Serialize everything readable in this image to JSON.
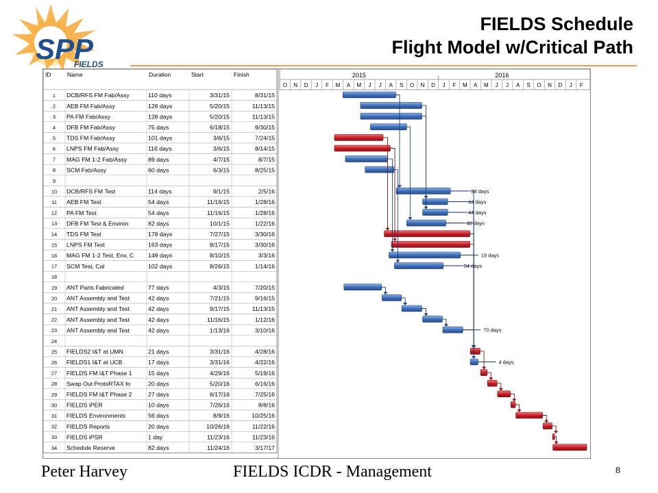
{
  "slide": {
    "title_line1": "FIELDS Schedule",
    "title_line2": "Flight Model w/Critical Path",
    "footer_left": "Peter Harvey",
    "footer_center": "FIELDS  ICDR - Management",
    "page_number": "8"
  },
  "logo": {
    "text_main": "SPP",
    "text_sub": "FIELDS",
    "icon": "sun-logo-icon"
  },
  "colors": {
    "normal_bar": "#3f6fb8",
    "critical_bar": "#c8202a",
    "link_blue": "#1f3f78",
    "link_red": "#8b1010",
    "title_rule": "#e0a060"
  },
  "columns": {
    "id": "ID",
    "name": "Name",
    "duration": "Duration",
    "start": "Start",
    "finish": "Finish"
  },
  "timeline": {
    "years": [
      "2015",
      "2016"
    ],
    "months": [
      "O",
      "N",
      "D",
      "J",
      "F",
      "M",
      "A",
      "M",
      "J",
      "J",
      "A",
      "S",
      "O",
      "N",
      "D",
      "J",
      "F",
      "M",
      "A",
      "M",
      "J",
      "J",
      "A",
      "S",
      "O",
      "N",
      "D",
      "J",
      "F"
    ]
  },
  "tasks": [
    {
      "id": "1",
      "name": "DCB/RFS FM Fab/Assy",
      "duration": "110 days",
      "start": "3/31/15",
      "finish": "8/31/15",
      "bar": [
        5.97,
        10.97
      ],
      "critical": false
    },
    {
      "id": "2",
      "name": "AEB FM Fab/Assy",
      "duration": "128 days",
      "start": "5/20/15",
      "finish": "11/13/15",
      "bar": [
        7.63,
        13.43
      ],
      "critical": false
    },
    {
      "id": "3",
      "name": "PA FM Fab/Assy",
      "duration": "128 days",
      "start": "5/20/15",
      "finish": "11/13/15",
      "bar": [
        7.63,
        13.43
      ],
      "critical": false
    },
    {
      "id": "4",
      "name": "DFB FM Fab/Assy",
      "duration": "75 days",
      "start": "6/18/15",
      "finish": "9/30/15",
      "bar": [
        8.57,
        12.0
      ],
      "critical": false
    },
    {
      "id": "5",
      "name": "TDS FM Fab/Assy",
      "duration": "101 days",
      "start": "3/6/15",
      "finish": "7/24/15",
      "bar": [
        5.17,
        9.77
      ],
      "critical": true
    },
    {
      "id": "6",
      "name": "LNPS FM Fab/Assy",
      "duration": "116 days",
      "start": "3/6/15",
      "finish": "8/14/15",
      "bar": [
        5.17,
        10.45
      ],
      "critical": true
    },
    {
      "id": "7",
      "name": "MAG FM 1-2 Fab/Assy",
      "duration": "89 days",
      "start": "4/7/15",
      "finish": "8/7/15",
      "bar": [
        6.2,
        10.2
      ],
      "critical": false
    },
    {
      "id": "8",
      "name": "SCM Fab/Assy",
      "duration": "60 days",
      "start": "6/3/15",
      "finish": "8/25/15",
      "bar": [
        8.07,
        10.8
      ],
      "critical": false
    },
    {
      "id": "9",
      "name": "",
      "duration": "",
      "start": "",
      "finish": "",
      "bar": null,
      "critical": false
    },
    {
      "id": "10",
      "name": "DCB/RFS FM Test",
      "duration": "114 days",
      "start": "9/1/15",
      "finish": "2/5/16",
      "bar": [
        11.0,
        16.13
      ],
      "critical": false,
      "slack": "38 days"
    },
    {
      "id": "11",
      "name": "AEB FM Test",
      "duration": "54 days",
      "start": "11/16/15",
      "finish": "1/28/16",
      "bar": [
        13.5,
        15.87
      ],
      "critical": false,
      "slack": "44 days"
    },
    {
      "id": "12",
      "name": "PA FM Test",
      "duration": "54 days",
      "start": "11/16/15",
      "finish": "1/28/16",
      "bar": [
        13.5,
        15.87
      ],
      "critical": false,
      "slack": "44 days"
    },
    {
      "id": "13",
      "name": "DFB FM Test & Environ",
      "duration": "82 days",
      "start": "10/1/15",
      "finish": "1/22/16",
      "bar": [
        12.0,
        15.7
      ],
      "critical": false,
      "slack": "48 days"
    },
    {
      "id": "14",
      "name": "TDS FM Test",
      "duration": "178 days",
      "start": "7/27/15",
      "finish": "3/30/16",
      "bar": [
        9.87,
        17.97
      ],
      "critical": true
    },
    {
      "id": "15",
      "name": "LNPS FM Test",
      "duration": "163 days",
      "start": "8/17/15",
      "finish": "3/30/16",
      "bar": [
        10.55,
        17.97
      ],
      "critical": true
    },
    {
      "id": "16",
      "name": "MAG FM 1-2 Test, Env, C",
      "duration": "149 days",
      "start": "8/10/15",
      "finish": "3/3/16",
      "bar": [
        10.32,
        17.07
      ],
      "critical": false,
      "slack": "19 days"
    },
    {
      "id": "17",
      "name": "SCM Test, Cal",
      "duration": "102 days",
      "start": "8/26/15",
      "finish": "1/14/16",
      "bar": [
        10.83,
        15.45
      ],
      "critical": false,
      "slack": "54 days"
    },
    {
      "id": "18",
      "name": "",
      "duration": "",
      "start": "",
      "finish": "",
      "bar": null,
      "critical": false
    },
    {
      "id": "19",
      "name": "ANT Parts Fabricated",
      "duration": "77 days",
      "start": "4/3/15",
      "finish": "7/20/15",
      "bar": [
        6.07,
        9.63
      ],
      "critical": false
    },
    {
      "id": "20",
      "name": "ANT Assembly and Test",
      "duration": "42 days",
      "start": "7/21/15",
      "finish": "9/16/15",
      "bar": [
        9.67,
        11.5
      ],
      "critical": false
    },
    {
      "id": "21",
      "name": "ANT Assembly and Test",
      "duration": "42 days",
      "start": "9/17/15",
      "finish": "11/13/15",
      "bar": [
        11.53,
        13.43
      ],
      "critical": false
    },
    {
      "id": "22",
      "name": "ANT Assembly and Test",
      "duration": "42 days",
      "start": "11/16/15",
      "finish": "1/12/16",
      "bar": [
        13.5,
        15.37
      ],
      "critical": false
    },
    {
      "id": "23",
      "name": "ANT Assembly and Test",
      "duration": "42 days",
      "start": "1/13/16",
      "finish": "3/10/16",
      "bar": [
        15.4,
        17.3
      ],
      "critical": false,
      "slack": "70 days"
    },
    {
      "id": "24",
      "name": "",
      "duration": "",
      "start": "",
      "finish": "",
      "bar": null,
      "critical": false
    },
    {
      "id": "25",
      "name": "FIELDS2 I&T at UMN",
      "duration": "21 days",
      "start": "3/31/16",
      "finish": "4/28/16",
      "bar": [
        18.0,
        18.93
      ],
      "critical": true
    },
    {
      "id": "26",
      "name": "FIELDS1 I&T at UCB",
      "duration": "17 days",
      "start": "3/31/16",
      "finish": "4/22/16",
      "bar": [
        18.0,
        18.73
      ],
      "critical": false,
      "slack": "4 days"
    },
    {
      "id": "27",
      "name": "FIELDS FM I&T Phase 1",
      "duration": "15 days",
      "start": "4/29/16",
      "finish": "5/19/16",
      "bar": [
        18.97,
        19.6
      ],
      "critical": true
    },
    {
      "id": "28",
      "name": "Swap Out ProtoRTAX fo",
      "duration": "20 days",
      "start": "5/20/16",
      "finish": "6/16/16",
      "bar": [
        19.63,
        20.53
      ],
      "critical": true
    },
    {
      "id": "29",
      "name": "FIELDS FM I&T Phase 2",
      "duration": "27 days",
      "start": "6/17/16",
      "finish": "7/25/16",
      "bar": [
        20.57,
        21.8
      ],
      "critical": true
    },
    {
      "id": "30",
      "name": "FIELDS iPER",
      "duration": "10 days",
      "start": "7/26/16",
      "finish": "8/8/16",
      "bar": [
        21.83,
        22.27
      ],
      "critical": true
    },
    {
      "id": "31",
      "name": "FIELDS Environments",
      "duration": "56 days",
      "start": "8/9/16",
      "finish": "10/25/16",
      "bar": [
        22.3,
        24.83
      ],
      "critical": true
    },
    {
      "id": "32",
      "name": "FIELDS Reports",
      "duration": "20 days",
      "start": "10/26/16",
      "finish": "11/22/16",
      "bar": [
        24.87,
        25.73
      ],
      "critical": true
    },
    {
      "id": "33",
      "name": "FIELDS iPSR",
      "duration": "1 day",
      "start": "11/23/16",
      "finish": "11/23/16",
      "bar": [
        25.77,
        25.8
      ],
      "critical": true
    },
    {
      "id": "34",
      "name": "Schedule Reserve",
      "duration": "82 days",
      "start": "11/24/16",
      "finish": "3/17/17",
      "bar": [
        25.8,
        29.0
      ],
      "critical": true
    }
  ]
}
